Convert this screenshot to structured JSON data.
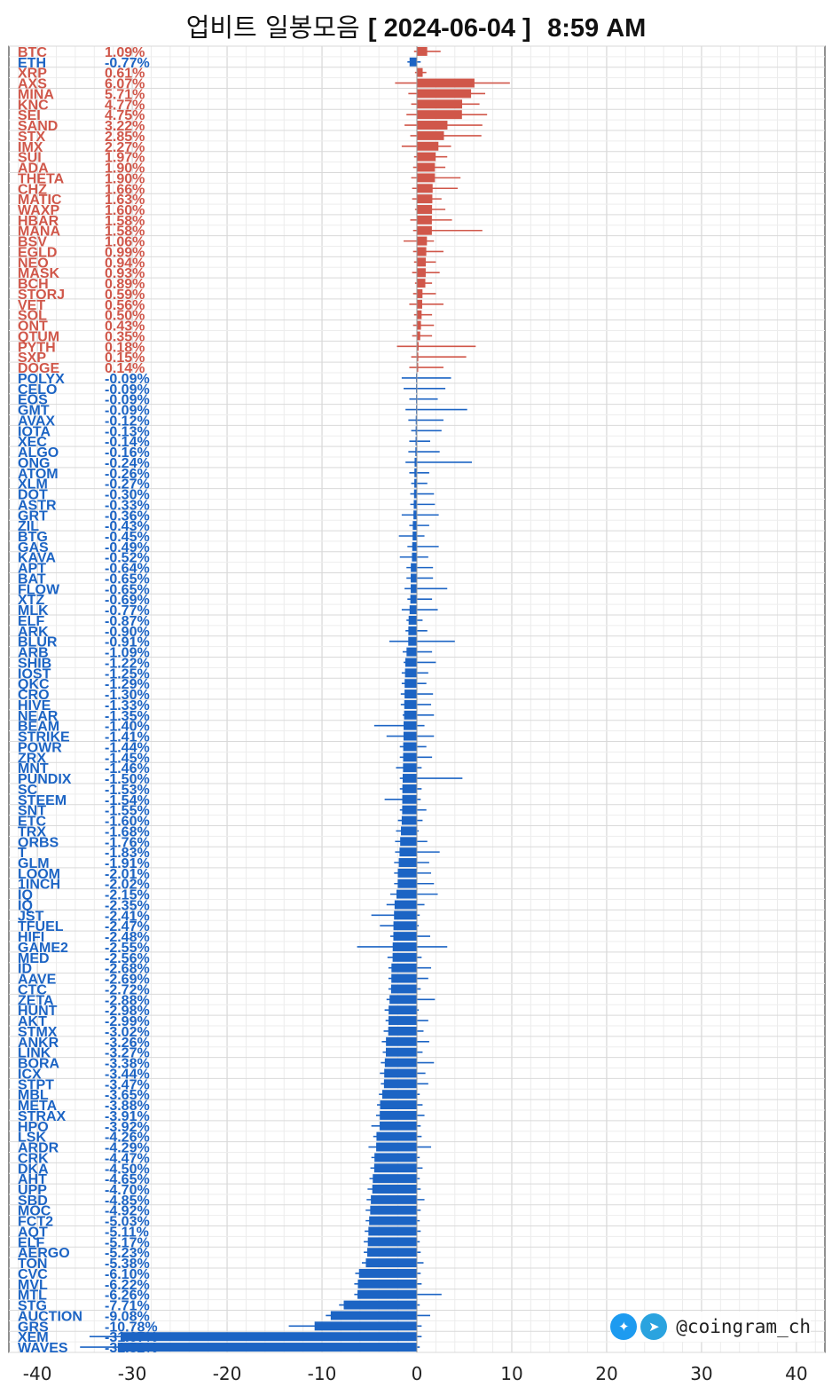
{
  "header": {
    "title_prefix": "업비트 일봉모음",
    "title_date": "[ 2024-06-04 ]",
    "title_time": "8:59 AM"
  },
  "brand": {
    "twitter_icon": "twitter-bird-icon",
    "telegram_icon": "telegram-plane-icon",
    "handle": "@coingram_ch"
  },
  "colors": {
    "positive": "#d0574a",
    "negative": "#1c64c4",
    "grid": "#dddddd"
  },
  "chart_data": {
    "type": "bar",
    "orientation": "horizontal",
    "x_ticks": [
      -40,
      -30,
      -20,
      -10,
      0,
      10,
      20,
      30,
      40
    ],
    "xlim": [
      -43,
      43
    ],
    "grid": true,
    "series": [
      {
        "n": "BTC",
        "v": 1.09,
        "lo": -0.3,
        "hi": 2.5
      },
      {
        "n": "ETH",
        "v": -0.77,
        "lo": -1.0,
        "hi": 0.4
      },
      {
        "n": "XRP",
        "v": 0.61,
        "lo": -0.2,
        "hi": 1.0
      },
      {
        "n": "AXS",
        "v": 6.07,
        "lo": -2.3,
        "hi": 9.8
      },
      {
        "n": "MINA",
        "v": 5.71,
        "lo": -0.9,
        "hi": 7.2
      },
      {
        "n": "KNC",
        "v": 4.77,
        "lo": -0.6,
        "hi": 6.6
      },
      {
        "n": "SEI",
        "v": 4.75,
        "lo": -1.1,
        "hi": 7.4
      },
      {
        "n": "SAND",
        "v": 3.22,
        "lo": -1.3,
        "hi": 6.9
      },
      {
        "n": "STX",
        "v": 2.85,
        "lo": -0.7,
        "hi": 6.8
      },
      {
        "n": "IMX",
        "v": 2.27,
        "lo": -1.6,
        "hi": 3.6
      },
      {
        "n": "SUI",
        "v": 1.97,
        "lo": -0.3,
        "hi": 3.2
      },
      {
        "n": "ADA",
        "v": 1.9,
        "lo": -0.4,
        "hi": 3.0
      },
      {
        "n": "THETA",
        "v": 1.9,
        "lo": -0.6,
        "hi": 4.6
      },
      {
        "n": "CHZ",
        "v": 1.66,
        "lo": -0.5,
        "hi": 4.3
      },
      {
        "n": "MATIC",
        "v": 1.63,
        "lo": -0.5,
        "hi": 2.6
      },
      {
        "n": "WAXP",
        "v": 1.6,
        "lo": -0.2,
        "hi": 3.0
      },
      {
        "n": "HBAR",
        "v": 1.58,
        "lo": -0.7,
        "hi": 3.7
      },
      {
        "n": "MANA",
        "v": 1.58,
        "lo": -0.4,
        "hi": 6.9
      },
      {
        "n": "BSV",
        "v": 1.06,
        "lo": -1.4,
        "hi": 1.8
      },
      {
        "n": "EGLD",
        "v": 0.99,
        "lo": -0.4,
        "hi": 2.8
      },
      {
        "n": "NEO",
        "v": 0.94,
        "lo": -0.3,
        "hi": 2.0
      },
      {
        "n": "MASK",
        "v": 0.93,
        "lo": -0.5,
        "hi": 2.4
      },
      {
        "n": "BCH",
        "v": 0.89,
        "lo": -0.2,
        "hi": 1.6
      },
      {
        "n": "STORJ",
        "v": 0.59,
        "lo": -0.4,
        "hi": 2.0
      },
      {
        "n": "VET",
        "v": 0.56,
        "lo": -0.8,
        "hi": 2.8
      },
      {
        "n": "SOL",
        "v": 0.5,
        "lo": -0.3,
        "hi": 1.6
      },
      {
        "n": "ONT",
        "v": 0.43,
        "lo": -0.4,
        "hi": 1.8
      },
      {
        "n": "QTUM",
        "v": 0.35,
        "lo": -0.5,
        "hi": 1.6
      },
      {
        "n": "PYTH",
        "v": 0.18,
        "lo": -2.1,
        "hi": 6.2
      },
      {
        "n": "SXP",
        "v": 0.15,
        "lo": -0.6,
        "hi": 5.2
      },
      {
        "n": "DOGE",
        "v": 0.14,
        "lo": -0.8,
        "hi": 2.8
      },
      {
        "n": "POLYX",
        "v": -0.09,
        "lo": -1.6,
        "hi": 3.6
      },
      {
        "n": "CELO",
        "v": -0.09,
        "lo": -1.4,
        "hi": 3.0
      },
      {
        "n": "EOS",
        "v": -0.09,
        "lo": -0.8,
        "hi": 2.2
      },
      {
        "n": "GMT",
        "v": -0.09,
        "lo": -1.2,
        "hi": 5.3
      },
      {
        "n": "AVAX",
        "v": -0.12,
        "lo": -0.9,
        "hi": 2.8
      },
      {
        "n": "IOTA",
        "v": -0.13,
        "lo": -0.6,
        "hi": 2.6
      },
      {
        "n": "XEC",
        "v": -0.14,
        "lo": -0.8,
        "hi": 1.4
      },
      {
        "n": "ALGO",
        "v": -0.16,
        "lo": -0.9,
        "hi": 2.4
      },
      {
        "n": "ONG",
        "v": -0.24,
        "lo": -1.2,
        "hi": 5.8
      },
      {
        "n": "ATOM",
        "v": -0.26,
        "lo": -0.8,
        "hi": 1.3
      },
      {
        "n": "XLM",
        "v": -0.27,
        "lo": -0.6,
        "hi": 1.1
      },
      {
        "n": "DOT",
        "v": -0.3,
        "lo": -0.7,
        "hi": 1.8
      },
      {
        "n": "ASTR",
        "v": -0.33,
        "lo": -0.7,
        "hi": 1.9
      },
      {
        "n": "GRT",
        "v": -0.36,
        "lo": -1.6,
        "hi": 2.3
      },
      {
        "n": "ZIL",
        "v": -0.43,
        "lo": -0.8,
        "hi": 1.3
      },
      {
        "n": "BTG",
        "v": -0.45,
        "lo": -1.9,
        "hi": 0.8
      },
      {
        "n": "GAS",
        "v": -0.49,
        "lo": -1.0,
        "hi": 2.3
      },
      {
        "n": "KAVA",
        "v": -0.52,
        "lo": -1.8,
        "hi": 1.2
      },
      {
        "n": "APT",
        "v": -0.64,
        "lo": -1.1,
        "hi": 1.7
      },
      {
        "n": "BAT",
        "v": -0.65,
        "lo": -1.1,
        "hi": 1.7
      },
      {
        "n": "FLOW",
        "v": -0.65,
        "lo": -1.3,
        "hi": 3.2
      },
      {
        "n": "XTZ",
        "v": -0.69,
        "lo": -1.0,
        "hi": 1.6
      },
      {
        "n": "MLK",
        "v": -0.77,
        "lo": -1.6,
        "hi": 2.2
      },
      {
        "n": "ELF",
        "v": -0.87,
        "lo": -1.1,
        "hi": 0.6
      },
      {
        "n": "ARK",
        "v": -0.9,
        "lo": -1.2,
        "hi": 1.1
      },
      {
        "n": "BLUR",
        "v": -0.91,
        "lo": -2.9,
        "hi": 4.0
      },
      {
        "n": "ARB",
        "v": -1.09,
        "lo": -1.5,
        "hi": 1.6
      },
      {
        "n": "SHIB",
        "v": -1.22,
        "lo": -1.4,
        "hi": 2.0
      },
      {
        "n": "IOST",
        "v": -1.25,
        "lo": -1.6,
        "hi": 1.2
      },
      {
        "n": "QKC",
        "v": -1.29,
        "lo": -1.6,
        "hi": 1.0
      },
      {
        "n": "CRO",
        "v": -1.3,
        "lo": -1.7,
        "hi": 1.7
      },
      {
        "n": "HIVE",
        "v": -1.33,
        "lo": -1.7,
        "hi": 1.5
      },
      {
        "n": "NEAR",
        "v": -1.35,
        "lo": -1.5,
        "hi": 1.8
      },
      {
        "n": "BEAM",
        "v": -1.4,
        "lo": -4.5,
        "hi": 0.8
      },
      {
        "n": "STRIKE",
        "v": -1.41,
        "lo": -3.2,
        "hi": 1.8
      },
      {
        "n": "POWR",
        "v": -1.44,
        "lo": -1.8,
        "hi": 1.0
      },
      {
        "n": "ZRX",
        "v": -1.45,
        "lo": -1.8,
        "hi": 1.6
      },
      {
        "n": "MNT",
        "v": -1.46,
        "lo": -2.2,
        "hi": 0.5
      },
      {
        "n": "PUNDIX",
        "v": -1.5,
        "lo": -1.8,
        "hi": 4.8
      },
      {
        "n": "SC",
        "v": -1.53,
        "lo": -1.8,
        "hi": 0.5
      },
      {
        "n": "STEEM",
        "v": -1.54,
        "lo": -3.4,
        "hi": 0.4
      },
      {
        "n": "SNT",
        "v": -1.55,
        "lo": -1.8,
        "hi": 1.0
      },
      {
        "n": "ETC",
        "v": -1.6,
        "lo": -2.0,
        "hi": 0.6
      },
      {
        "n": "TRX",
        "v": -1.68,
        "lo": -2.2,
        "hi": 0.2
      },
      {
        "n": "ORBS",
        "v": -1.76,
        "lo": -2.3,
        "hi": 1.1
      },
      {
        "n": "T",
        "v": -1.83,
        "lo": -2.3,
        "hi": 2.4
      },
      {
        "n": "GLM",
        "v": -1.91,
        "lo": -2.4,
        "hi": 1.3
      },
      {
        "n": "LOOM",
        "v": -2.01,
        "lo": -2.4,
        "hi": 1.5
      },
      {
        "n": "1INCH",
        "v": -2.02,
        "lo": -2.4,
        "hi": 1.8
      },
      {
        "n": "IQ",
        "v": -2.15,
        "lo": -2.8,
        "hi": 2.2
      },
      {
        "n": "IQ",
        "v": -2.35,
        "lo": -3.2,
        "hi": 0.8
      },
      {
        "n": "JST",
        "v": -2.41,
        "lo": -4.8,
        "hi": 0.3
      },
      {
        "n": "TFUEL",
        "v": -2.47,
        "lo": -3.9,
        "hi": 0.2
      },
      {
        "n": "HIFI",
        "v": -2.48,
        "lo": -2.8,
        "hi": 1.4
      },
      {
        "n": "GAME2",
        "v": -2.55,
        "lo": -6.3,
        "hi": 3.2
      },
      {
        "n": "MED",
        "v": -2.56,
        "lo": -3.1,
        "hi": 0.5
      },
      {
        "n": "ID",
        "v": -2.68,
        "lo": -3.0,
        "hi": 1.5
      },
      {
        "n": "AAVE",
        "v": -2.69,
        "lo": -3.0,
        "hi": 1.2
      },
      {
        "n": "CTC",
        "v": -2.72,
        "lo": -3.0,
        "hi": 0.4
      },
      {
        "n": "ZETA",
        "v": -2.88,
        "lo": -3.2,
        "hi": 1.9
      },
      {
        "n": "HUNT",
        "v": -2.98,
        "lo": -3.4,
        "hi": 0.2
      },
      {
        "n": "AKT",
        "v": -2.99,
        "lo": -3.3,
        "hi": 1.2
      },
      {
        "n": "STMX",
        "v": -3.02,
        "lo": -3.5,
        "hi": 0.7
      },
      {
        "n": "ANKR",
        "v": -3.26,
        "lo": -3.7,
        "hi": 1.3
      },
      {
        "n": "LINK",
        "v": -3.27,
        "lo": -3.6,
        "hi": 0.6
      },
      {
        "n": "BORA",
        "v": -3.38,
        "lo": -3.8,
        "hi": 1.8
      },
      {
        "n": "ICX",
        "v": -3.44,
        "lo": -3.9,
        "hi": 0.9
      },
      {
        "n": "STPT",
        "v": -3.47,
        "lo": -3.8,
        "hi": 1.2
      },
      {
        "n": "MBL",
        "v": -3.65,
        "lo": -4.0,
        "hi": 0.3
      },
      {
        "n": "META",
        "v": -3.88,
        "lo": -4.2,
        "hi": 0.6
      },
      {
        "n": "STRAX",
        "v": -3.91,
        "lo": -4.3,
        "hi": 0.8
      },
      {
        "n": "HPO",
        "v": -3.92,
        "lo": -4.8,
        "hi": 0.4
      },
      {
        "n": "LSK",
        "v": -4.26,
        "lo": -4.6,
        "hi": 0.5
      },
      {
        "n": "ARDR",
        "v": -4.29,
        "lo": -5.1,
        "hi": 1.5
      },
      {
        "n": "CRK",
        "v": -4.47,
        "lo": -4.8,
        "hi": 0.3
      },
      {
        "n": "DKA",
        "v": -4.5,
        "lo": -4.9,
        "hi": 0.6
      },
      {
        "n": "AHT",
        "v": -4.65,
        "lo": -5.0,
        "hi": 0.3
      },
      {
        "n": "UPP",
        "v": -4.7,
        "lo": -5.2,
        "hi": 0.4
      },
      {
        "n": "SBD",
        "v": -4.85,
        "lo": -5.3,
        "hi": 0.8
      },
      {
        "n": "MOC",
        "v": -4.92,
        "lo": -5.4,
        "hi": 0.4
      },
      {
        "n": "FCT2",
        "v": -5.03,
        "lo": -5.4,
        "hi": 0.3
      },
      {
        "n": "AQT",
        "v": -5.11,
        "lo": -5.5,
        "hi": 0.4
      },
      {
        "n": "ELF",
        "v": -5.17,
        "lo": -5.6,
        "hi": 0.3
      },
      {
        "n": "AERGO",
        "v": -5.23,
        "lo": -5.6,
        "hi": 0.4
      },
      {
        "n": "TON",
        "v": -5.38,
        "lo": -5.8,
        "hi": 0.7
      },
      {
        "n": "CVC",
        "v": -6.1,
        "lo": -6.5,
        "hi": 0.4
      },
      {
        "n": "MVL",
        "v": -6.22,
        "lo": -6.6,
        "hi": 0.5
      },
      {
        "n": "MTL",
        "v": -6.26,
        "lo": -6.6,
        "hi": 2.6
      },
      {
        "n": "STG",
        "v": -7.71,
        "lo": -8.2,
        "hi": 0.3
      },
      {
        "n": "AUCTION",
        "v": -9.08,
        "lo": -9.6,
        "hi": 1.4
      },
      {
        "n": "GRS",
        "v": -10.78,
        "lo": -13.5,
        "hi": 0.5
      },
      {
        "n": "XEM",
        "v": -31.07,
        "lo": -34.5,
        "hi": 0.5
      },
      {
        "n": "WAVES",
        "v": -31.52,
        "lo": -35.5,
        "hi": 0.3
      }
    ]
  }
}
